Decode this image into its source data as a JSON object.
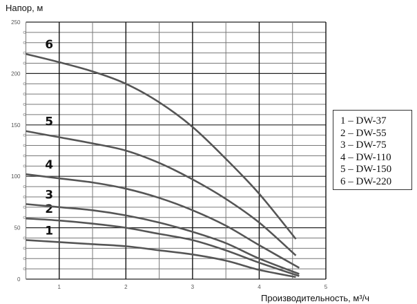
{
  "chart_data": {
    "type": "line",
    "xlabel": "Производительность, м³/ч",
    "ylabel": "Напор, м",
    "xlim": [
      0.5,
      5
    ],
    "ylim": [
      0,
      250
    ],
    "x_ticks": [
      "1",
      "2",
      "3",
      "4",
      "5"
    ],
    "y_ticks": [
      "0",
      "50",
      "100",
      "150",
      "200",
      "250"
    ],
    "grid": true,
    "legend_position": "right",
    "legend": [
      "1 – DW-37",
      "2 – DW-55",
      "3 – DW-75",
      "4 – DW-110",
      "5 – DW-150",
      "6 – DW-220"
    ],
    "line_color": "#555555",
    "series": [
      {
        "name": "1",
        "x": [
          0.5,
          1,
          1.5,
          2,
          2.5,
          3,
          3.5,
          4,
          4.55
        ],
        "y": [
          38,
          36,
          34,
          32,
          28,
          24,
          18,
          9,
          2
        ]
      },
      {
        "name": "2",
        "x": [
          0.5,
          1,
          1.5,
          2,
          2.5,
          3,
          3.5,
          4,
          4.6
        ],
        "y": [
          59,
          57,
          54,
          50,
          44,
          38,
          28,
          16,
          3
        ]
      },
      {
        "name": "3",
        "x": [
          0.5,
          1,
          1.5,
          2,
          2.5,
          3,
          3.5,
          4,
          4.6
        ],
        "y": [
          73,
          70,
          67,
          62,
          55,
          46,
          35,
          20,
          5
        ]
      },
      {
        "name": "4",
        "x": [
          0.5,
          1,
          1.5,
          2,
          2.5,
          3,
          3.5,
          4,
          4.6
        ],
        "y": [
          102,
          98,
          94,
          88,
          79,
          67,
          52,
          33,
          11
        ]
      },
      {
        "name": "5",
        "x": [
          0.5,
          1,
          1.5,
          2,
          2.5,
          3,
          3.5,
          4,
          4.55
        ],
        "y": [
          144,
          138,
          132,
          125,
          113,
          97,
          78,
          55,
          23
        ]
      },
      {
        "name": "6",
        "x": [
          0.5,
          1,
          1.5,
          2,
          2.5,
          3,
          3.5,
          4,
          4.55
        ],
        "y": [
          219,
          211,
          202,
          190,
          172,
          148,
          117,
          83,
          39
        ]
      }
    ]
  }
}
